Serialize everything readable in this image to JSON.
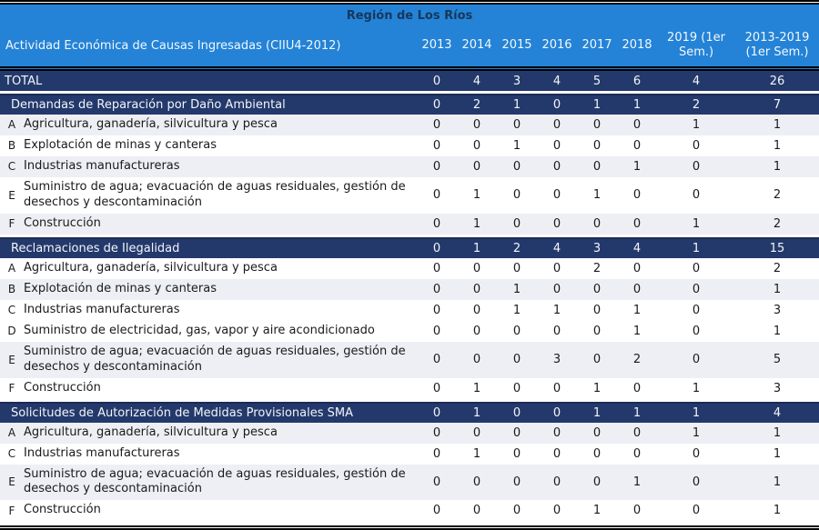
{
  "title": "Región de Los Ríos",
  "header": {
    "label_col": "Actividad Económica de Causas Ingresadas (CIIU4-2012)",
    "year_cols": [
      "2013",
      "2014",
      "2015",
      "2016",
      "2017",
      "2018",
      "2019 (1er Sem.)",
      "2013-2019 (1er Sem.)"
    ]
  },
  "colors": {
    "header_blue": "#2483d6",
    "navy": "#24396b",
    "navy_edge": "#1a2b55",
    "shaded_row": "#edeff4",
    "title_text": "#17375d"
  },
  "rows": [
    {
      "type": "total",
      "label": "TOTAL",
      "values": [
        0,
        4,
        3,
        4,
        5,
        6,
        4,
        26
      ]
    },
    {
      "type": "section",
      "label": "Demandas de Reparación por Daño Ambiental",
      "values": [
        0,
        2,
        1,
        0,
        1,
        1,
        2,
        7
      ]
    },
    {
      "type": "data",
      "letter": "A",
      "label": "Agricultura, ganadería, silvicultura y pesca",
      "values": [
        0,
        0,
        0,
        0,
        0,
        0,
        1,
        1
      ],
      "shaded": true
    },
    {
      "type": "data",
      "letter": "B",
      "label": "Explotación de minas y canteras",
      "values": [
        0,
        0,
        1,
        0,
        0,
        0,
        0,
        1
      ],
      "shaded": false
    },
    {
      "type": "data",
      "letter": "C",
      "label": "Industrias manufactureras",
      "values": [
        0,
        0,
        0,
        0,
        0,
        1,
        0,
        1
      ],
      "shaded": true
    },
    {
      "type": "data",
      "letter": "E",
      "label": "Suministro de agua; evacuación de aguas residuales, gestión de desechos y descontaminación",
      "values": [
        0,
        1,
        0,
        0,
        1,
        0,
        0,
        2
      ],
      "shaded": false
    },
    {
      "type": "data",
      "letter": "F",
      "label": "Construcción",
      "values": [
        0,
        1,
        0,
        0,
        0,
        0,
        1,
        2
      ],
      "shaded": true
    },
    {
      "type": "section",
      "label": "Reclamaciones de Ilegalidad",
      "values": [
        0,
        1,
        2,
        4,
        3,
        4,
        1,
        15
      ]
    },
    {
      "type": "data",
      "letter": "A",
      "label": "Agricultura, ganadería, silvicultura y pesca",
      "values": [
        0,
        0,
        0,
        0,
        2,
        0,
        0,
        2
      ],
      "shaded": false
    },
    {
      "type": "data",
      "letter": "B",
      "label": "Explotación de minas y canteras",
      "values": [
        0,
        0,
        1,
        0,
        0,
        0,
        0,
        1
      ],
      "shaded": true
    },
    {
      "type": "data",
      "letter": "C",
      "label": "Industrias manufactureras",
      "values": [
        0,
        0,
        1,
        1,
        0,
        1,
        0,
        3
      ],
      "shaded": false
    },
    {
      "type": "data",
      "letter": "D",
      "label": "Suministro de electricidad, gas, vapor y aire acondicionado",
      "values": [
        0,
        0,
        0,
        0,
        0,
        1,
        0,
        1
      ],
      "shaded": false
    },
    {
      "type": "data",
      "letter": "E",
      "label": "Suministro de agua; evacuación de aguas residuales, gestión de desechos y descontaminación",
      "values": [
        0,
        0,
        0,
        3,
        0,
        2,
        0,
        5
      ],
      "shaded": true
    },
    {
      "type": "data",
      "letter": "F",
      "label": "Construcción",
      "values": [
        0,
        1,
        0,
        0,
        1,
        0,
        1,
        3
      ],
      "shaded": false
    },
    {
      "type": "section",
      "label": "Solicitudes de Autorización de Medidas Provisionales SMA",
      "values": [
        0,
        1,
        0,
        0,
        1,
        1,
        1,
        4
      ]
    },
    {
      "type": "data",
      "letter": "A",
      "label": "Agricultura, ganadería, silvicultura y pesca",
      "values": [
        0,
        0,
        0,
        0,
        0,
        0,
        1,
        1
      ],
      "shaded": true
    },
    {
      "type": "data",
      "letter": "C",
      "label": "Industrias manufactureras",
      "values": [
        0,
        1,
        0,
        0,
        0,
        0,
        0,
        1
      ],
      "shaded": false
    },
    {
      "type": "data",
      "letter": "E",
      "label": "Suministro de agua; evacuación de aguas residuales, gestión de desechos y descontaminación",
      "values": [
        0,
        0,
        0,
        0,
        0,
        1,
        0,
        1
      ],
      "shaded": true
    },
    {
      "type": "data",
      "letter": "F",
      "label": "Construcción",
      "values": [
        0,
        0,
        0,
        0,
        1,
        0,
        0,
        1
      ],
      "shaded": false
    }
  ]
}
